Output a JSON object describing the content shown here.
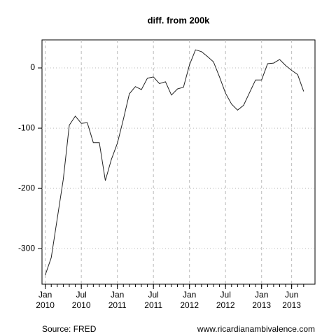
{
  "chart_data": {
    "type": "line",
    "title": "diff. from 200k",
    "x": [
      "2010-01",
      "2010-02",
      "2010-03",
      "2010-04",
      "2010-05",
      "2010-06",
      "2010-07",
      "2010-08",
      "2010-09",
      "2010-10",
      "2010-11",
      "2010-12",
      "2011-01",
      "2011-02",
      "2011-03",
      "2011-04",
      "2011-05",
      "2011-06",
      "2011-07",
      "2011-08",
      "2011-09",
      "2011-10",
      "2011-11",
      "2011-12",
      "2012-01",
      "2012-02",
      "2012-03",
      "2012-04",
      "2012-05",
      "2012-06",
      "2012-07",
      "2012-08",
      "2012-09",
      "2012-10",
      "2012-11",
      "2012-12",
      "2013-01",
      "2013-02",
      "2013-03",
      "2013-04",
      "2013-05",
      "2013-06",
      "2013-07",
      "2013-08"
    ],
    "values": [
      -344,
      -315,
      -250,
      -185,
      -95,
      -80,
      -92,
      -91,
      -124,
      -124,
      -187,
      -152,
      -125,
      -85,
      -43,
      -31,
      -36,
      -17,
      -15,
      -26,
      -23,
      -45,
      -35,
      -32,
      5,
      30,
      27,
      19,
      10,
      -15,
      -42,
      -60,
      -70,
      -62,
      -41,
      -20,
      -20,
      7,
      8,
      14,
      4,
      -4,
      -11,
      -39
    ],
    "color": "#222222",
    "xlim": [
      "2009-12-15",
      "2013-09-28"
    ],
    "xticks": [
      {
        "value": "2010-01",
        "label": "Jan\n2010"
      },
      {
        "value": "2010-07",
        "label": "Jul\n2010"
      },
      {
        "value": "2011-01",
        "label": "Jan\n2011"
      },
      {
        "value": "2011-07",
        "label": "Jul\n2011"
      },
      {
        "value": "2012-01",
        "label": "Jan\n2012"
      },
      {
        "value": "2012-07",
        "label": "Jul\n2012"
      },
      {
        "value": "2013-01",
        "label": "Jan\n2013"
      },
      {
        "value": "2013-06",
        "label": "Jun\n2013"
      }
    ],
    "ylim": [
      -359,
      46.5
    ],
    "yticks": [
      0,
      -100,
      -200,
      -300
    ],
    "grid": true,
    "source": "Source: FRED",
    "credit": "www.ricardianambivalence.com"
  }
}
